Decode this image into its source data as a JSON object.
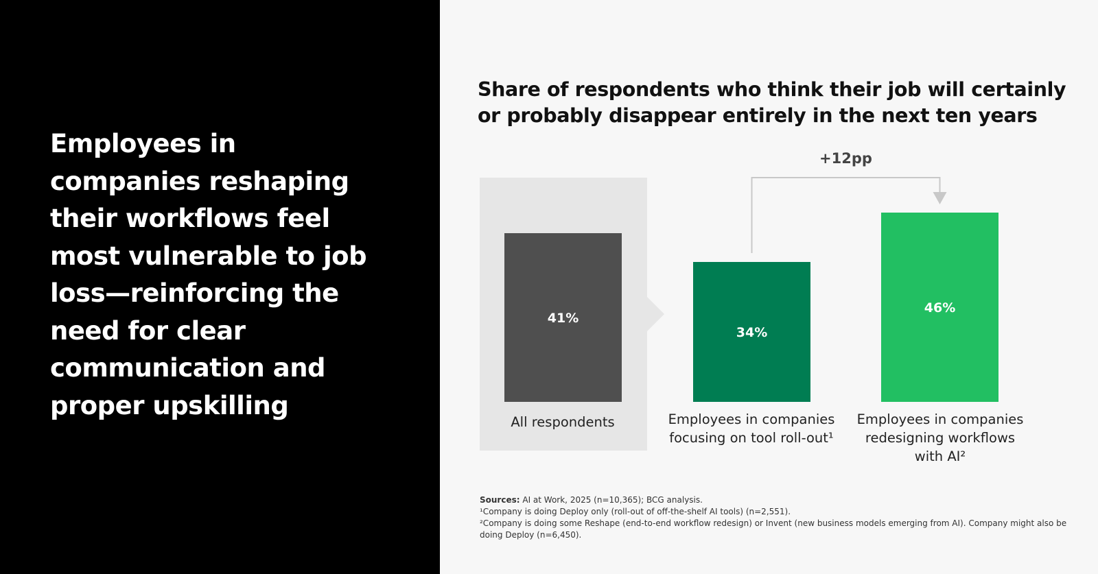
{
  "headline": "Employees in companies reshaping their workflows feel most vulnerable to job loss—reinforcing the need for clear communication and proper upskilling",
  "chart_data": {
    "type": "bar",
    "title": "Share of respondents who think their job will certainly or probably disappear entirely in the next ten years",
    "categories": [
      "All respondents",
      "Employees in companies focusing on tool roll-out¹",
      "Employees in companies redesigning workflows with AI²"
    ],
    "values": [
      41,
      34,
      46
    ],
    "value_labels": [
      "41%",
      "34%",
      "46%"
    ],
    "annotation": "+12pp",
    "colors": [
      "#4f4f4f",
      "#007d52",
      "#22bf62"
    ],
    "highlight_color": "#e6e6e6",
    "ylim": [
      0,
      50
    ],
    "grid": false
  },
  "notes": {
    "sources_label": "Sources:",
    "sources_text": " AI at Work, 2025 (n=10,365); BCG analysis.",
    "footnote1": "¹Company is doing Deploy only (roll-out of off-the-shelf AI tools) (n=2,551).",
    "footnote2": "²Company is doing some Reshape (end-to-end workflow redesign) or Invent (new business models emerging from AI). Company might also be doing Deploy (n=6,450)."
  }
}
